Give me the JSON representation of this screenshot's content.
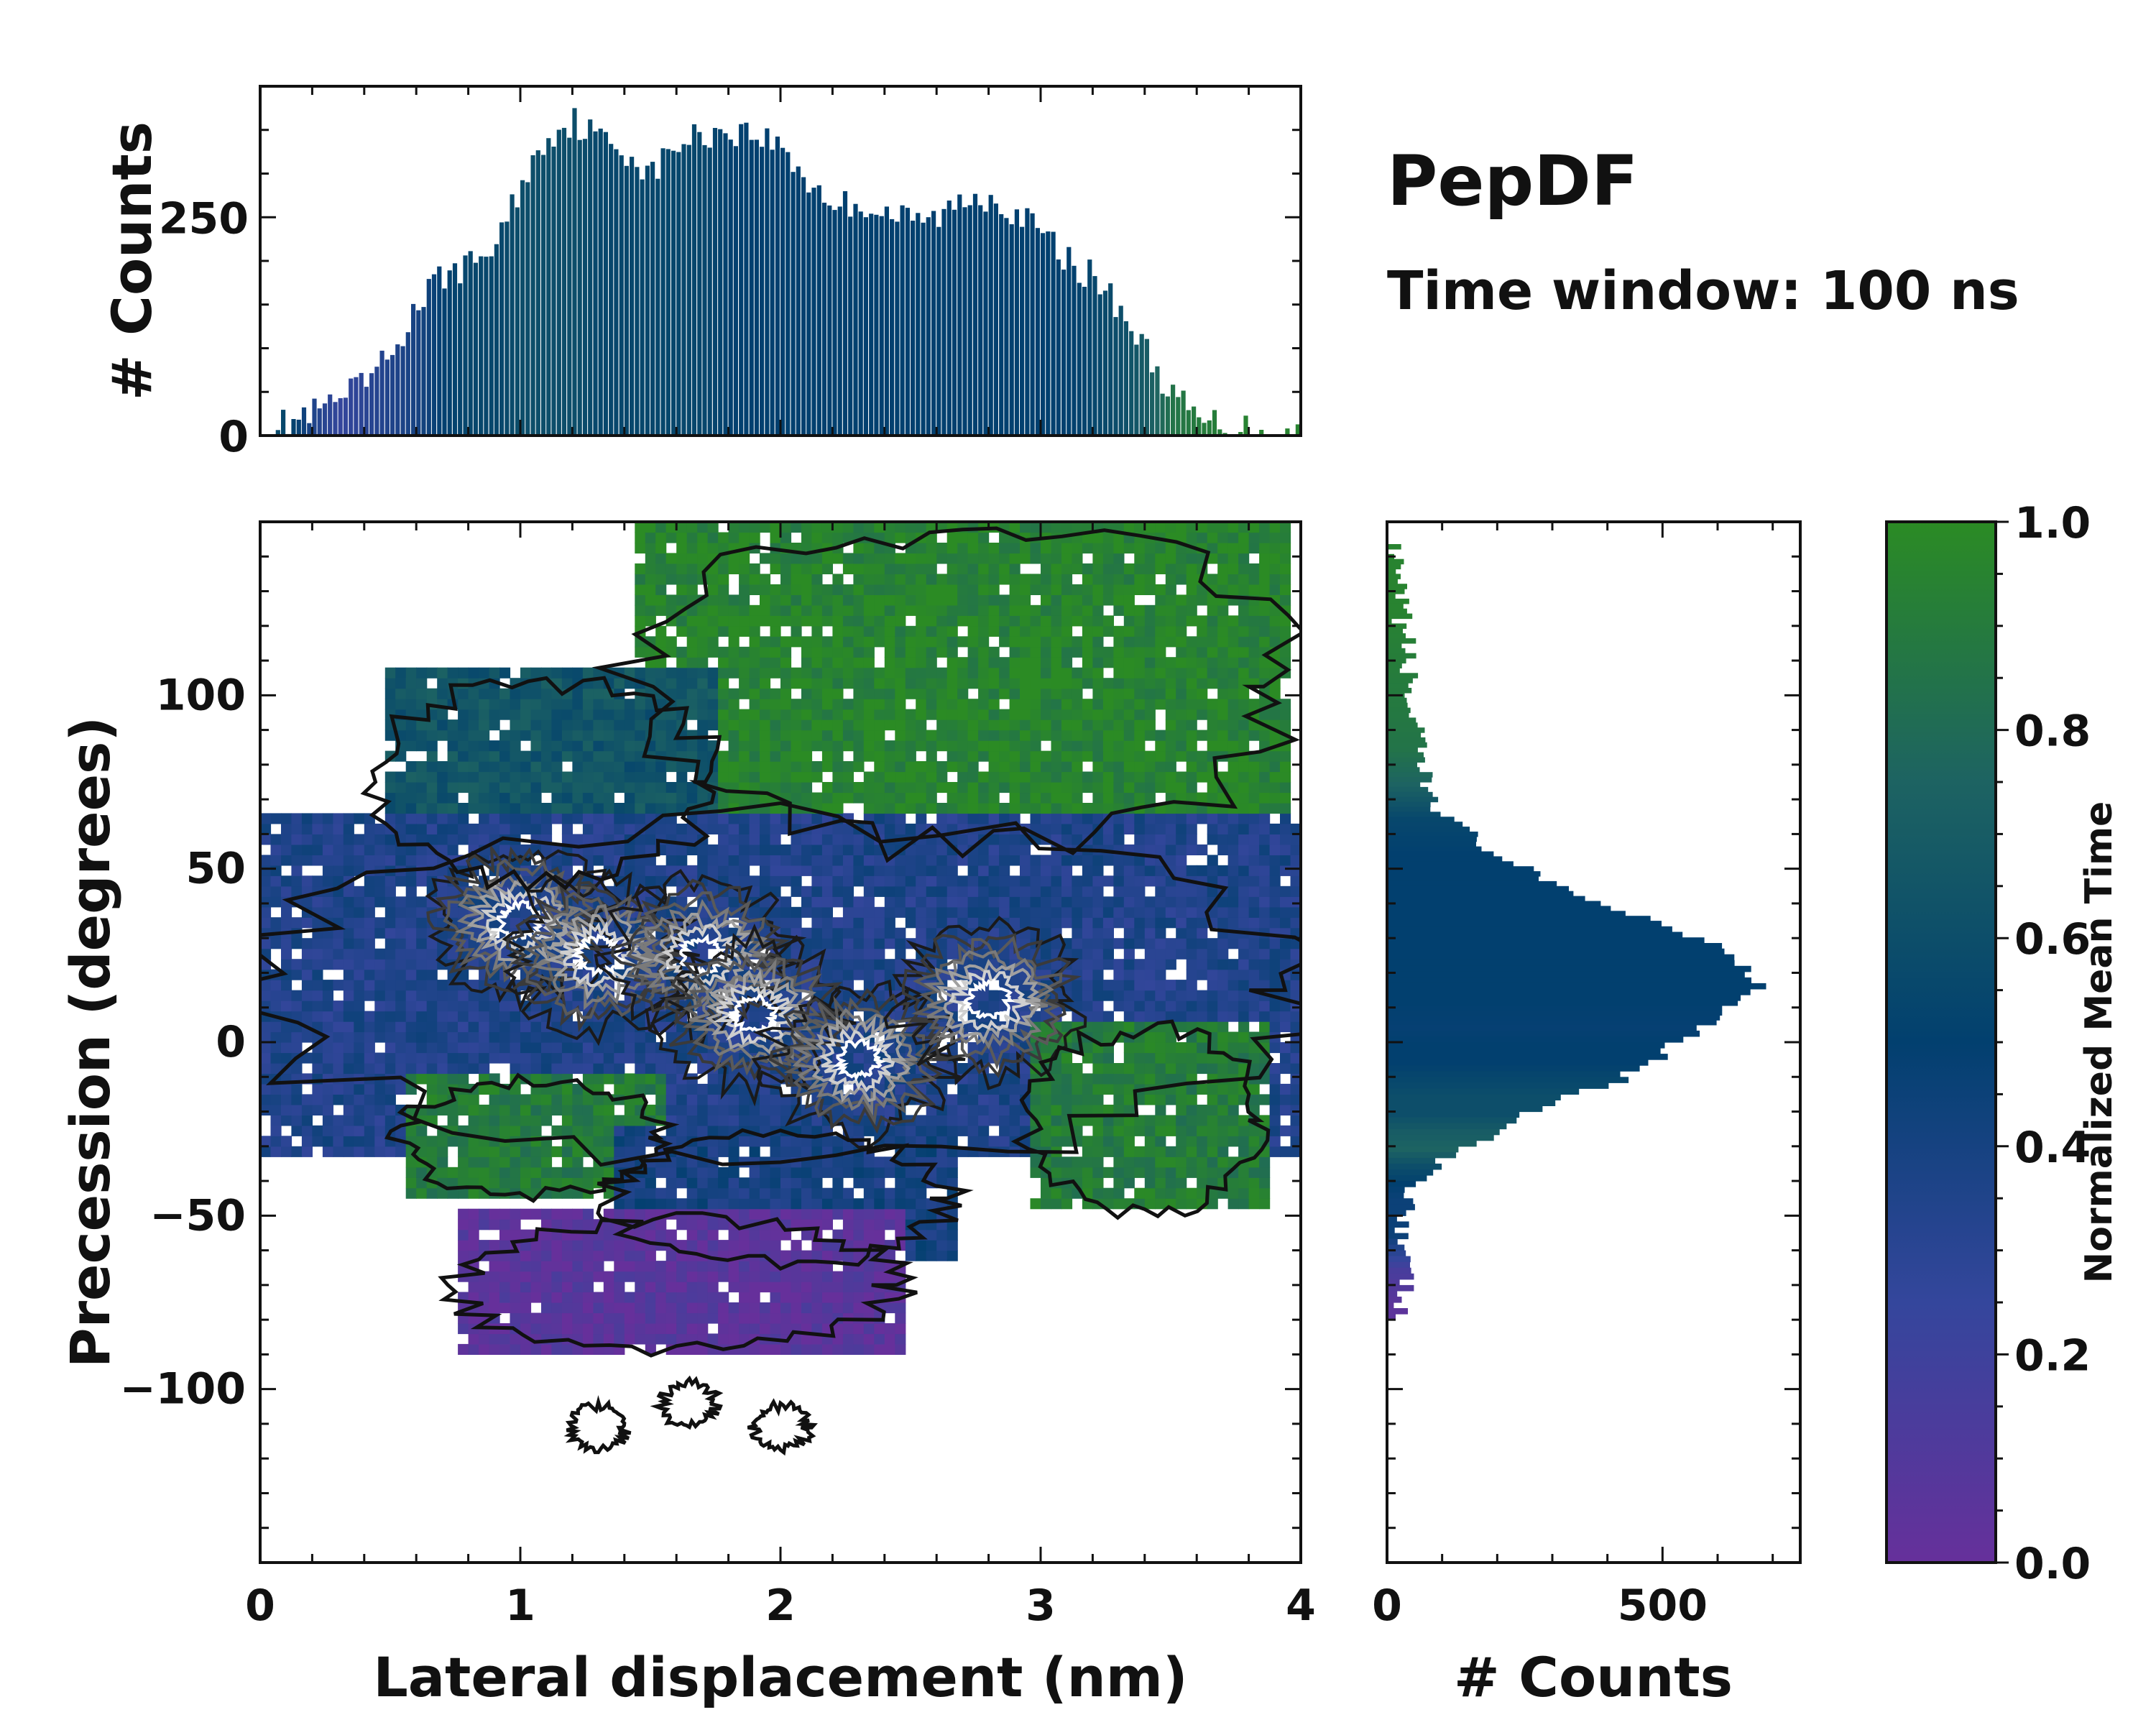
{
  "chart_data": {
    "title": "PepDF",
    "subtitle": "Time window: 100 ns",
    "main": {
      "type": "heatmap",
      "xlabel": "Lateral displacement (nm)",
      "ylabel": "Precession (degrees)",
      "xlim": [
        0,
        4
      ],
      "ylim": [
        -150,
        150
      ],
      "xticks": [
        0,
        1,
        2,
        3,
        4
      ],
      "xtick_labels": [
        "0",
        "1",
        "2",
        "3",
        "4"
      ],
      "yticks": [
        -100,
        -50,
        0,
        50,
        100
      ],
      "ytick_labels": [
        "−100",
        "−50",
        "0",
        "50",
        "100"
      ],
      "color_regions": [
        {
          "name": "upper green region (late times)",
          "x_range": [
            1.5,
            3.9
          ],
          "y_range": [
            60,
            145
          ],
          "normalized_time": 0.95
        },
        {
          "name": "upper-left teal region",
          "x_range": [
            0.5,
            1.7
          ],
          "y_range": [
            50,
            100
          ],
          "normalized_time": 0.65
        },
        {
          "name": "central blue/purple band",
          "x_range": [
            0,
            4
          ],
          "y_range": [
            -30,
            60
          ],
          "normalized_time": 0.35
        },
        {
          "name": "lower green region",
          "x_range": [
            0.6,
            1.5
          ],
          "y_range": [
            -40,
            -15
          ],
          "normalized_time": 0.9
        },
        {
          "name": "lower-right green region",
          "x_range": [
            3.0,
            3.8
          ],
          "y_range": [
            -45,
            0
          ],
          "normalized_time": 0.9
        },
        {
          "name": "lower blue region",
          "x_range": [
            1.4,
            2.6
          ],
          "y_range": [
            -60,
            -30
          ],
          "normalized_time": 0.4
        },
        {
          "name": "bottom purple region (early times)",
          "x_range": [
            0.8,
            2.4
          ],
          "y_range": [
            -85,
            -55
          ],
          "normalized_time": 0.05
        },
        {
          "name": "isolated contour islands",
          "x_range": [
            1.3,
            2.0
          ],
          "y_range": [
            -118,
            -95
          ],
          "normalized_time": null
        }
      ],
      "density_peaks": [
        {
          "x": 1.0,
          "y": 35
        },
        {
          "x": 1.3,
          "y": 25
        },
        {
          "x": 1.7,
          "y": 25
        },
        {
          "x": 1.9,
          "y": 8
        },
        {
          "x": 2.3,
          "y": -5
        },
        {
          "x": 2.8,
          "y": 12
        }
      ]
    },
    "top_histogram": {
      "type": "bar",
      "ylabel": "# Counts",
      "xlim": [
        0,
        4
      ],
      "ylim": [
        0,
        400
      ],
      "yticks": [
        0,
        250
      ],
      "ytick_labels": [
        "0",
        "250"
      ],
      "x": [
        0.0,
        0.1,
        0.2,
        0.3,
        0.4,
        0.5,
        0.6,
        0.7,
        0.8,
        0.9,
        1.0,
        1.1,
        1.2,
        1.3,
        1.4,
        1.5,
        1.6,
        1.7,
        1.8,
        1.9,
        2.0,
        2.1,
        2.2,
        2.3,
        2.4,
        2.5,
        2.6,
        2.7,
        2.8,
        2.9,
        3.0,
        3.1,
        3.2,
        3.3,
        3.4,
        3.5,
        3.6,
        3.7,
        3.8,
        3.9,
        4.0
      ],
      "values": [
        5,
        15,
        25,
        40,
        60,
        95,
        150,
        185,
        195,
        220,
        290,
        345,
        360,
        340,
        325,
        300,
        335,
        345,
        350,
        345,
        330,
        290,
        265,
        265,
        255,
        245,
        250,
        270,
        275,
        255,
        230,
        200,
        180,
        145,
        95,
        45,
        18,
        12,
        8,
        4,
        2
      ],
      "normalized_time": [
        0.6,
        0.55,
        0.35,
        0.25,
        0.3,
        0.35,
        0.4,
        0.5,
        0.55,
        0.55,
        0.6,
        0.6,
        0.6,
        0.55,
        0.55,
        0.55,
        0.55,
        0.55,
        0.5,
        0.5,
        0.5,
        0.5,
        0.5,
        0.5,
        0.5,
        0.5,
        0.5,
        0.5,
        0.5,
        0.5,
        0.5,
        0.5,
        0.55,
        0.6,
        0.7,
        0.85,
        0.9,
        0.92,
        0.95,
        0.95,
        0.95
      ]
    },
    "right_histogram": {
      "type": "bar",
      "orientation": "horizontal",
      "xlabel": "# Counts",
      "xlim": [
        0,
        750
      ],
      "xticks": [
        0,
        500
      ],
      "xtick_labels": [
        "0",
        "500"
      ],
      "ylim": [
        -150,
        150
      ],
      "y": [
        145,
        135,
        125,
        115,
        105,
        95,
        85,
        75,
        65,
        55,
        45,
        35,
        27,
        22,
        17,
        12,
        5,
        0,
        -5,
        -10,
        -15,
        -20,
        -25,
        -30,
        -35,
        -40,
        -45,
        -50,
        -55,
        -60,
        -65,
        -70,
        -75,
        -80
      ],
      "values": [
        5,
        15,
        25,
        35,
        40,
        45,
        55,
        70,
        110,
        200,
        310,
        500,
        620,
        660,
        680,
        640,
        580,
        520,
        480,
        420,
        330,
        250,
        200,
        130,
        80,
        55,
        45,
        38,
        30,
        25,
        30,
        35,
        25,
        5
      ],
      "normalized_time": [
        0.95,
        0.95,
        0.95,
        0.92,
        0.9,
        0.88,
        0.85,
        0.75,
        0.55,
        0.5,
        0.5,
        0.5,
        0.5,
        0.5,
        0.5,
        0.5,
        0.48,
        0.5,
        0.5,
        0.55,
        0.6,
        0.6,
        0.7,
        0.75,
        0.6,
        0.5,
        0.45,
        0.45,
        0.45,
        0.3,
        0.15,
        0.1,
        0.05,
        0.05
      ]
    },
    "colorbar": {
      "label": "Normalized Mean Time",
      "ticks": [
        0.0,
        0.2,
        0.4,
        0.6,
        0.8,
        1.0
      ],
      "tick_labels": [
        "0.0",
        "0.2",
        "0.4",
        "0.6",
        "0.8",
        "1.0"
      ],
      "colors": [
        "#66309b",
        "#34469c",
        "#02406f",
        "#1d6362",
        "#2b8b24"
      ]
    }
  }
}
